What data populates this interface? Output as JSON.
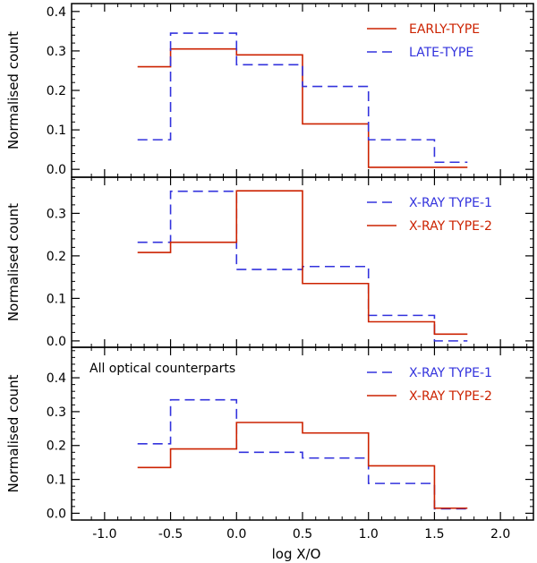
{
  "chart_data": {
    "type": "step-histogram",
    "shared_x": {
      "label": "log X/O",
      "range": [
        -1.25,
        2.25
      ],
      "ticks": [
        -1.0,
        -0.5,
        0.0,
        0.5,
        1.0,
        1.5,
        2.0
      ],
      "tick_labels": [
        "-1.0",
        "-0.5",
        "0.0",
        "0.5",
        "1.0",
        "1.5",
        "2.0"
      ]
    },
    "bin_edges": [
      -0.75,
      -0.5,
      0.0,
      0.5,
      1.0,
      1.5,
      1.75
    ],
    "colors": {
      "red": "#cc2200",
      "blue": "#3333dd"
    },
    "panels": [
      {
        "ylabel": "Normalised count",
        "ylim": [
          -0.02,
          0.42
        ],
        "yticks": [
          0.0,
          0.1,
          0.2,
          0.3,
          0.4
        ],
        "ytick_labels": [
          "0.0",
          "0.1",
          "0.2",
          "0.3",
          "0.4"
        ],
        "annotation": "",
        "legend_position": "top-right",
        "series": [
          {
            "name": "EARLY-TYPE",
            "color": "red",
            "style": "solid",
            "values": [
              0.26,
              0.305,
              0.29,
              0.115,
              0.005,
              0.005
            ]
          },
          {
            "name": "LATE-TYPE",
            "color": "blue",
            "style": "dashed",
            "values": [
              0.075,
              0.345,
              0.265,
              0.21,
              0.075,
              0.018
            ]
          }
        ]
      },
      {
        "ylabel": "Normalised count",
        "ylim": [
          -0.015,
          0.385
        ],
        "yticks": [
          0.0,
          0.1,
          0.2,
          0.3
        ],
        "ytick_labels": [
          "0.0",
          "0.1",
          "0.2",
          "0.3"
        ],
        "annotation": "",
        "legend_position": "top-right",
        "series": [
          {
            "name": "X-RAY TYPE-1",
            "color": "blue",
            "style": "dashed",
            "values": [
              0.232,
              0.352,
              0.168,
              0.175,
              0.06,
              0.0
            ]
          },
          {
            "name": "X-RAY TYPE-2",
            "color": "red",
            "style": "solid",
            "values": [
              0.208,
              0.232,
              0.353,
              0.135,
              0.045,
              0.016
            ]
          }
        ]
      },
      {
        "ylabel": "Normalised count",
        "ylim": [
          -0.02,
          0.49
        ],
        "yticks": [
          0.0,
          0.1,
          0.2,
          0.3,
          0.4
        ],
        "ytick_labels": [
          "0.0",
          "0.1",
          "0.2",
          "0.3",
          "0.4"
        ],
        "annotation": "All optical counterparts",
        "legend_position": "top-right",
        "series": [
          {
            "name": "X-RAY TYPE-1",
            "color": "blue",
            "style": "dashed",
            "values": [
              0.205,
              0.335,
              0.18,
              0.163,
              0.088,
              0.013
            ]
          },
          {
            "name": "X-RAY TYPE-2",
            "color": "red",
            "style": "solid",
            "values": [
              0.135,
              0.19,
              0.268,
              0.237,
              0.14,
              0.015
            ]
          }
        ]
      }
    ]
  }
}
